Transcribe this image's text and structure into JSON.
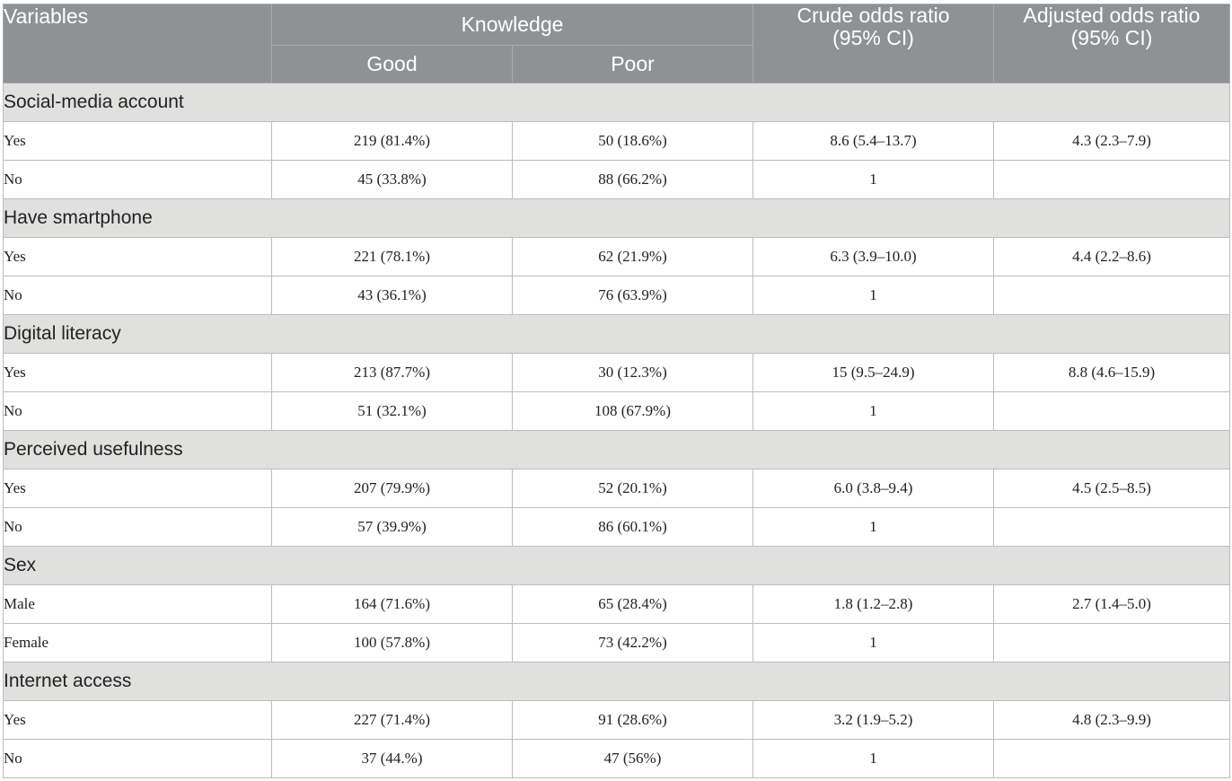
{
  "header": {
    "variables": "Variables",
    "knowledge": "Knowledge",
    "good": "Good",
    "poor": "Poor",
    "crude_line1": "Crude odds ratio",
    "crude_line2": "(95% CI)",
    "adjusted_line1": "Adjusted odds ratio",
    "adjusted_line2": "(95% CI)"
  },
  "groups": [
    {
      "name": "Social-media account",
      "rows": [
        {
          "label": "Yes",
          "good": "219 (81.4%)",
          "poor": "50 (18.6%)",
          "crude": "8.6 (5.4–13.7)",
          "adjusted": "4.3 (2.3–7.9)"
        },
        {
          "label": "No",
          "good": "45 (33.8%)",
          "poor": "88 (66.2%)",
          "crude": "1",
          "adjusted": ""
        }
      ]
    },
    {
      "name": "Have smartphone",
      "rows": [
        {
          "label": "Yes",
          "good": "221 (78.1%)",
          "poor": "62 (21.9%)",
          "crude": "6.3 (3.9–10.0)",
          "adjusted": "4.4 (2.2–8.6)"
        },
        {
          "label": "No",
          "good": "43 (36.1%)",
          "poor": "76 (63.9%)",
          "crude": "1",
          "adjusted": ""
        }
      ]
    },
    {
      "name": "Digital literacy",
      "rows": [
        {
          "label": "Yes",
          "good": "213 (87.7%)",
          "poor": "30 (12.3%)",
          "crude": "15 (9.5–24.9)",
          "adjusted": "8.8 (4.6–15.9)"
        },
        {
          "label": "No",
          "good": "51 (32.1%)",
          "poor": "108 (67.9%)",
          "crude": "1",
          "adjusted": ""
        }
      ]
    },
    {
      "name": "Perceived usefulness",
      "rows": [
        {
          "label": "Yes",
          "good": "207 (79.9%)",
          "poor": "52 (20.1%)",
          "crude": "6.0 (3.8–9.4)",
          "adjusted": "4.5 (2.5–8.5)"
        },
        {
          "label": "No",
          "good": "57 (39.9%)",
          "poor": "86 (60.1%)",
          "crude": "1",
          "adjusted": ""
        }
      ]
    },
    {
      "name": "Sex",
      "rows": [
        {
          "label": "Male",
          "good": "164 (71.6%)",
          "poor": "65 (28.4%)",
          "crude": "1.8 (1.2–2.8)",
          "adjusted": "2.7 (1.4–5.0)"
        },
        {
          "label": "Female",
          "good": "100 (57.8%)",
          "poor": "73 (42.2%)",
          "crude": "1",
          "adjusted": ""
        }
      ]
    },
    {
      "name": "Internet access",
      "rows": [
        {
          "label": "Yes",
          "good": "227 (71.4%)",
          "poor": "91 (28.6%)",
          "crude": "3.2 (1.9–5.2)",
          "adjusted": "4.8 (2.3–9.9)"
        },
        {
          "label": "No",
          "good": "37 (44.%)",
          "poor": "47 (56%)",
          "crude": "1",
          "adjusted": ""
        }
      ]
    }
  ]
}
